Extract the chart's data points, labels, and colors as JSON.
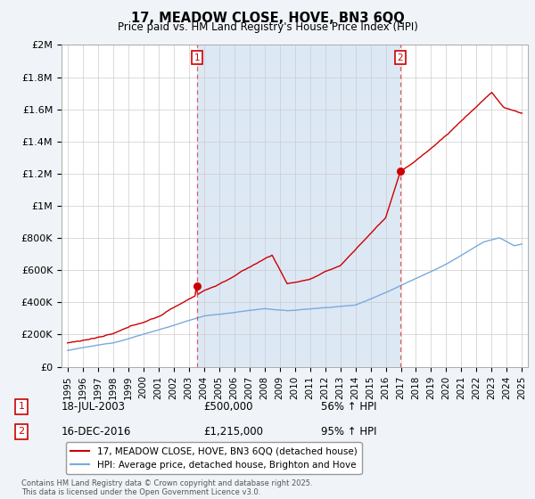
{
  "title": "17, MEADOW CLOSE, HOVE, BN3 6QQ",
  "subtitle": "Price paid vs. HM Land Registry's House Price Index (HPI)",
  "ylim": [
    0,
    2000000
  ],
  "yticks": [
    0,
    200000,
    400000,
    600000,
    800000,
    1000000,
    1200000,
    1400000,
    1600000,
    1800000,
    2000000
  ],
  "ytick_labels": [
    "£0",
    "£200K",
    "£400K",
    "£600K",
    "£800K",
    "£1M",
    "£1.2M",
    "£1.4M",
    "£1.6M",
    "£1.8M",
    "£2M"
  ],
  "xlim_start": 1994.6,
  "xlim_end": 2025.4,
  "property_color": "#cc0000",
  "hpi_color": "#7aaadd",
  "vline1_x": 2003.54,
  "vline2_x": 2016.96,
  "sale1_y": 500000,
  "sale2_y": 1215000,
  "sale1_date": "18-JUL-2003",
  "sale1_price": "£500,000",
  "sale1_hpi": "56% ↑ HPI",
  "sale2_date": "16-DEC-2016",
  "sale2_price": "£1,215,000",
  "sale2_hpi": "95% ↑ HPI",
  "legend_property": "17, MEADOW CLOSE, HOVE, BN3 6QQ (detached house)",
  "legend_hpi": "HPI: Average price, detached house, Brighton and Hove",
  "footnote": "Contains HM Land Registry data © Crown copyright and database right 2025.\nThis data is licensed under the Open Government Licence v3.0.",
  "background_color": "#f0f4f8",
  "plot_bg_color": "#ffffff",
  "fill_bg_color": "#dde8f5",
  "grid_color": "#cccccc",
  "vline_color": "#dd4444"
}
